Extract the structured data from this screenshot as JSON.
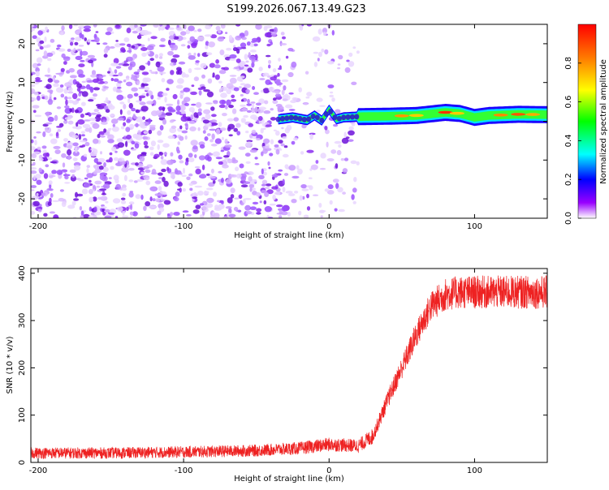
{
  "title": "S199.2026.067.13.49.G23",
  "chart_data": [
    {
      "type": "heatmap",
      "xlabel": "Height of straight line (km)",
      "ylabel": "Frequency (Hz)",
      "xlim": [
        -205,
        150
      ],
      "ylim": [
        -25,
        25
      ],
      "xticks": [
        -200,
        -100,
        0,
        100
      ],
      "yticks": [
        -20,
        -10,
        0,
        10,
        20
      ],
      "colorbar": {
        "label": "Normalized spectral amplitude",
        "ticks": [
          "0.0",
          "0.2",
          "0.4",
          "0.6",
          "0.8"
        ],
        "tick_values": [
          0.0,
          0.2,
          0.4,
          0.6,
          0.8
        ],
        "range": [
          0,
          1
        ]
      },
      "noise_region_km": [
        -205,
        20
      ],
      "signal_start_km": -35,
      "signal_band_hz": [
        [
          -35,
          0.5
        ],
        [
          -25,
          1.0
        ],
        [
          -15,
          0.3
        ],
        [
          -10,
          1.5
        ],
        [
          -5,
          0.2
        ],
        [
          0,
          3.0
        ],
        [
          5,
          0.5
        ],
        [
          10,
          1.0
        ],
        [
          20,
          1.2
        ],
        [
          40,
          1.3
        ],
        [
          60,
          1.5
        ],
        [
          80,
          2.3
        ],
        [
          90,
          2.0
        ],
        [
          100,
          1.0
        ],
        [
          110,
          1.5
        ],
        [
          130,
          1.8
        ],
        [
          150,
          1.7
        ]
      ]
    },
    {
      "type": "line",
      "xlabel": "Height of straight line (km)",
      "ylabel": "SNR (10 * v/v)",
      "xlim": [
        -205,
        150
      ],
      "ylim": [
        0,
        410
      ],
      "xticks": [
        -200,
        -100,
        0,
        100
      ],
      "yticks": [
        0,
        100,
        200,
        300,
        400
      ],
      "color": "#ee2222",
      "series": [
        {
          "name": "SNR",
          "x": [
            -205,
            -150,
            -100,
            -50,
            -20,
            0,
            20,
            30,
            40,
            50,
            60,
            70,
            80,
            90,
            100,
            120,
            150
          ],
          "y": [
            20,
            20,
            22,
            25,
            30,
            38,
            35,
            55,
            130,
            200,
            270,
            330,
            355,
            360,
            360,
            360,
            360
          ]
        }
      ]
    }
  ]
}
